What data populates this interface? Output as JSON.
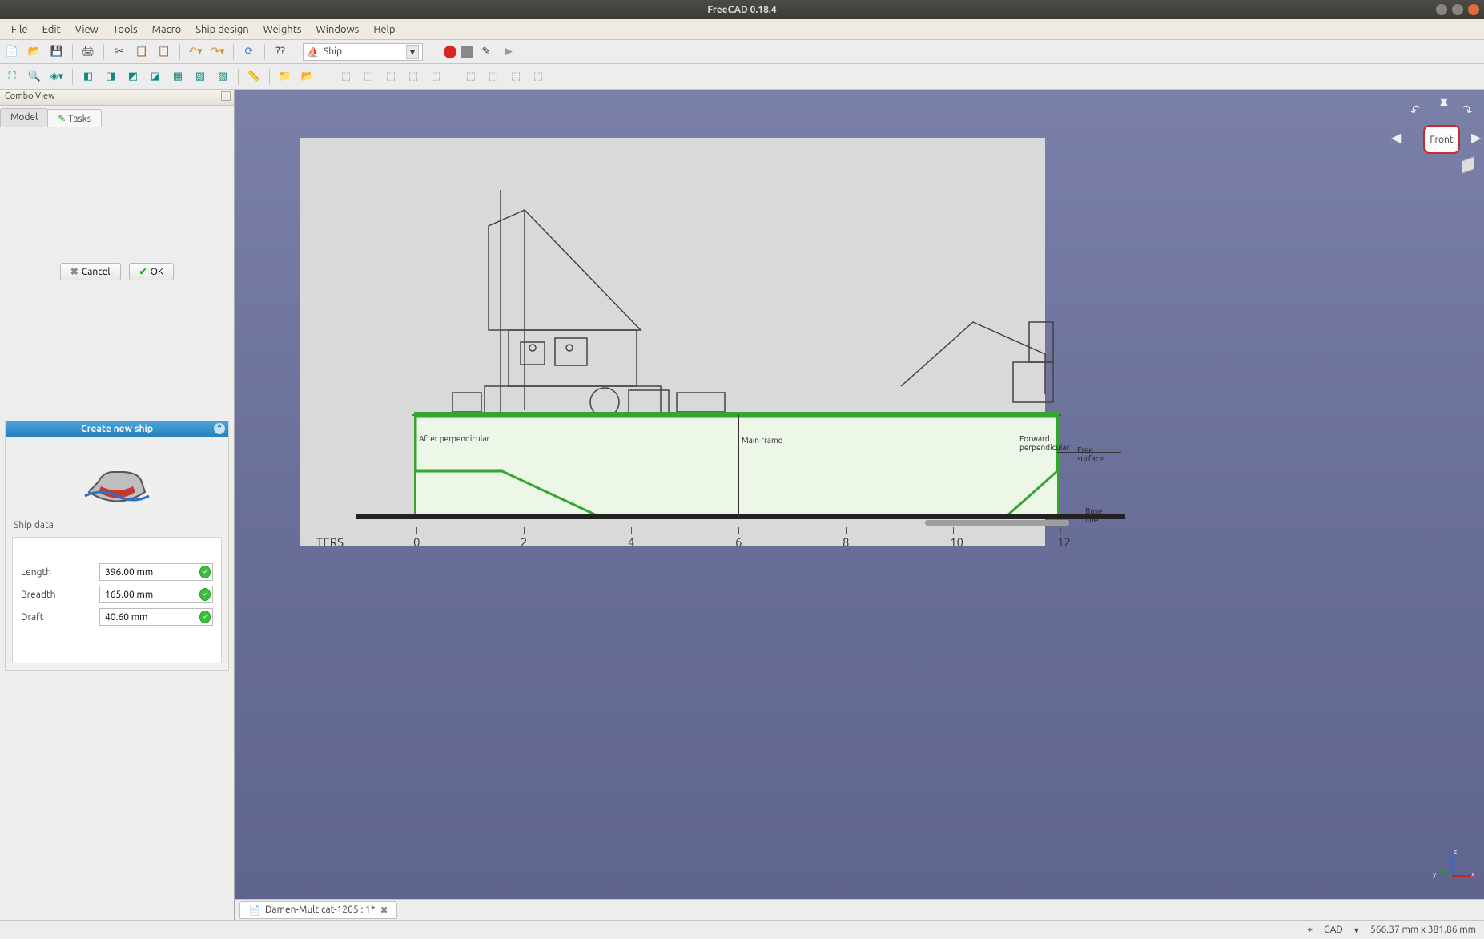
{
  "window": {
    "title": "FreeCAD 0.18.4",
    "buttons": {
      "min_color": "#8a857b",
      "max_color": "#8a857b",
      "close_color": "#e46b3e"
    }
  },
  "menu": [
    {
      "label": "File",
      "u": "F"
    },
    {
      "label": "Edit",
      "u": "E"
    },
    {
      "label": "View",
      "u": "V"
    },
    {
      "label": "Tools",
      "u": "T"
    },
    {
      "label": "Macro",
      "u": "M"
    },
    {
      "label": "Ship design",
      "u": ""
    },
    {
      "label": "Weights",
      "u": ""
    },
    {
      "label": "Windows",
      "u": "W"
    },
    {
      "label": "Help",
      "u": "H"
    }
  ],
  "workbench": {
    "icon": "⛴",
    "name": "Ship"
  },
  "combo": {
    "title": "Combo View",
    "tabs": [
      {
        "label": "Model",
        "active": false
      },
      {
        "label": "Tasks",
        "active": true
      }
    ],
    "task_buttons": {
      "cancel": "Cancel",
      "ok": "OK"
    },
    "panel_title": "Create new ship",
    "section": "Ship data",
    "fields": [
      {
        "label": "Length",
        "value": "396.00 mm"
      },
      {
        "label": "Breadth",
        "value": "165.00 mm"
      },
      {
        "label": "Draft",
        "value": "40.60 mm"
      }
    ]
  },
  "viewport": {
    "bg_top": "#7b80a8",
    "bg_bot": "#5f648e",
    "drawing_bg": "#d9d9d9",
    "hull": {
      "fill": "#edf7e8",
      "stroke": "#34a52e",
      "stroke_width": 2
    },
    "labels": {
      "after": "After perpendicular",
      "main": "Main frame",
      "forward": "Forward perpendicular",
      "free": "Free surface",
      "base": "Base line"
    },
    "scale": {
      "unit_label": "TERS",
      "ticks": [
        0,
        2,
        4,
        6,
        8,
        10,
        12
      ]
    },
    "navcube": "Front"
  },
  "document_tab": {
    "name": "Damen-Multicat-1205 : 1*"
  },
  "status": {
    "cad": "CAD",
    "dims": "566.37 mm x 381.86 mm"
  }
}
